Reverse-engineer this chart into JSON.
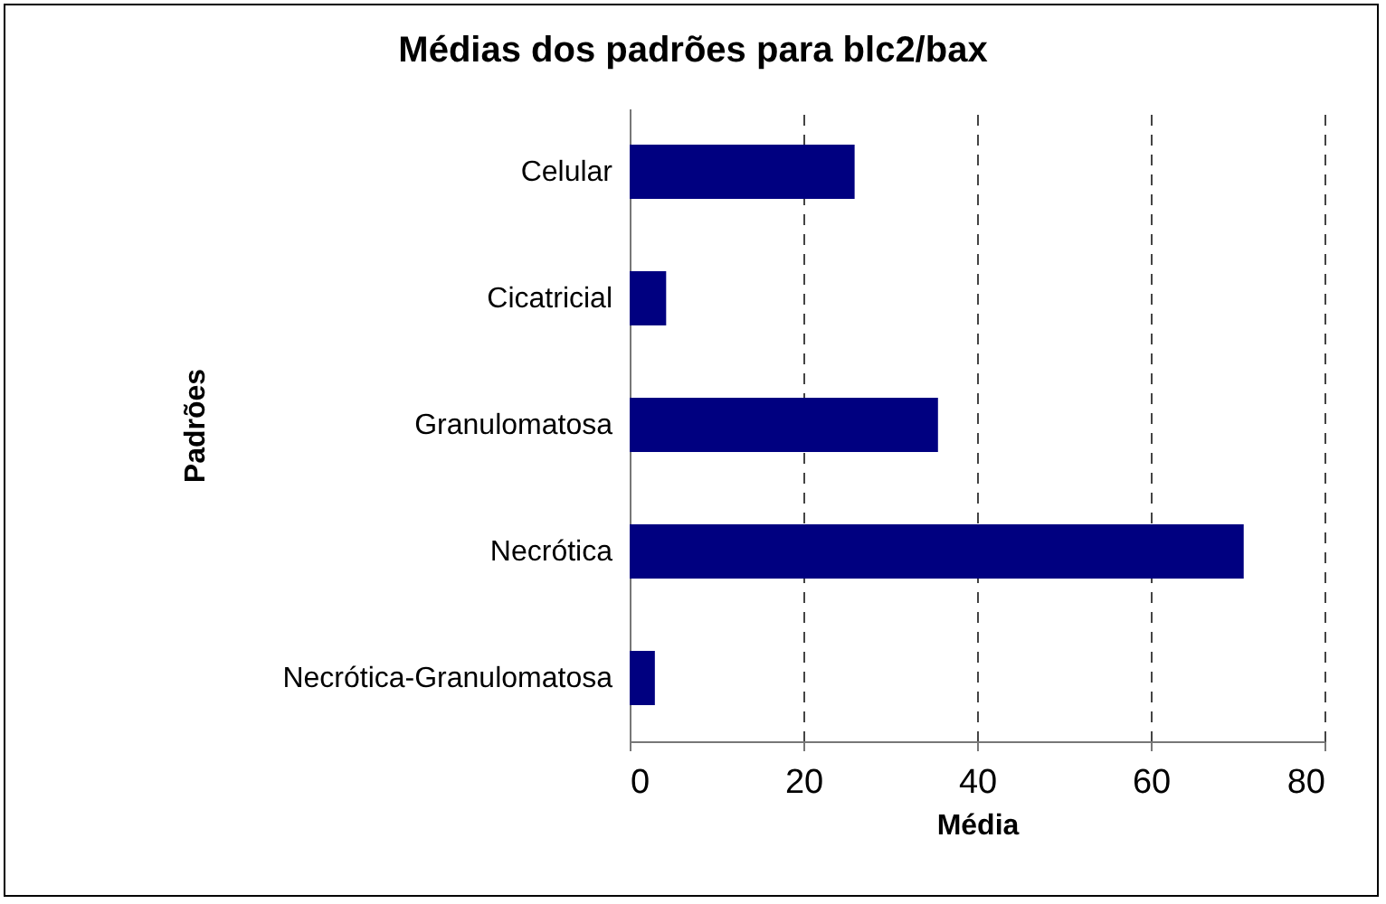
{
  "chart_data": {
    "type": "bar",
    "orientation": "horizontal",
    "title": "Médias dos padrões para blc2/bax",
    "xlabel": "Média",
    "ylabel": "Padrões",
    "categories": [
      "Celular",
      "Cicatricial",
      "Granulomatosa",
      "Necrótica",
      "Necrótica-Granulomatosa"
    ],
    "values": [
      25.9,
      4.2,
      35.5,
      70.7,
      2.9
    ],
    "color": "#000080",
    "xlim": [
      0,
      80
    ],
    "xticks": [
      0,
      20,
      40,
      60,
      80
    ],
    "grid": "x"
  }
}
